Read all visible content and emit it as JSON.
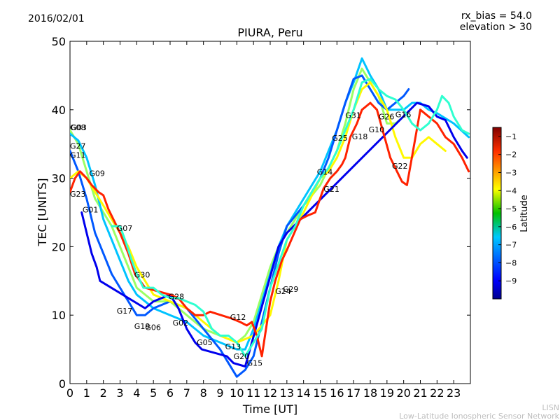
{
  "header": {
    "date": "2016/02/01",
    "bias": "rx_bias = 54.0",
    "elevation": "elevation > 30",
    "footer_line1": "LISN",
    "footer_line2": "Low-Latitude Ionospheric Sensor Network"
  },
  "chart_data": {
    "type": "scatter",
    "title": "PIURA, Peru",
    "xlabel": "Time [UT]",
    "ylabel": "TEC [UNITS]",
    "xlim": [
      0,
      24
    ],
    "ylim": [
      0,
      50
    ],
    "xticks": [
      0,
      1,
      2,
      3,
      4,
      5,
      6,
      7,
      8,
      9,
      10,
      11,
      12,
      13,
      14,
      15,
      16,
      17,
      18,
      19,
      20,
      21,
      22,
      23
    ],
    "yticks": [
      0,
      10,
      20,
      30,
      40,
      50
    ],
    "colorbar": {
      "label": "Latitude",
      "range": [
        -10,
        -0.5
      ],
      "ticks": [
        -9,
        -8,
        -7,
        -6,
        -5,
        -4,
        -3,
        -2,
        -1
      ],
      "colormap": [
        "#00008f",
        "#0000ff",
        "#0080ff",
        "#00ffff",
        "#80ff80",
        "#ffff00",
        "#ff8000",
        "#ff0000",
        "#800000"
      ]
    },
    "satellites": [
      {
        "name": "G08",
        "label_at": [
          0.0,
          37.0
        ]
      },
      {
        "name": "G03",
        "label_at": [
          0.05,
          37.0
        ]
      },
      {
        "name": "G27",
        "label_at": [
          0.0,
          34.3
        ]
      },
      {
        "name": "G11",
        "label_at": [
          0.0,
          33.0
        ]
      },
      {
        "name": "G09",
        "label_at": [
          1.15,
          30.3
        ]
      },
      {
        "name": "G23",
        "label_at": [
          0.0,
          27.3
        ]
      },
      {
        "name": "G01",
        "label_at": [
          0.75,
          25.0
        ]
      },
      {
        "name": "G07",
        "label_at": [
          2.8,
          22.3
        ]
      },
      {
        "name": "G30",
        "label_at": [
          3.85,
          15.5
        ]
      },
      {
        "name": "G17",
        "label_at": [
          2.8,
          10.2
        ]
      },
      {
        "name": "G19",
        "label_at": [
          3.85,
          8.0
        ]
      },
      {
        "name": "G06",
        "label_at": [
          4.5,
          7.8
        ]
      },
      {
        "name": "G28",
        "label_at": [
          5.9,
          12.3
        ]
      },
      {
        "name": "G02",
        "label_at": [
          6.15,
          8.5
        ]
      },
      {
        "name": "G05",
        "label_at": [
          7.6,
          5.6
        ]
      },
      {
        "name": "G12",
        "label_at": [
          9.6,
          9.3
        ]
      },
      {
        "name": "G13",
        "label_at": [
          9.3,
          5.0
        ]
      },
      {
        "name": "G20",
        "label_at": [
          9.8,
          3.6
        ]
      },
      {
        "name": "G15",
        "label_at": [
          10.6,
          2.6
        ]
      },
      {
        "name": "G24",
        "label_at": [
          12.3,
          13.1
        ]
      },
      {
        "name": "G29",
        "label_at": [
          12.75,
          13.4
        ]
      },
      {
        "name": "G14",
        "label_at": [
          14.8,
          30.5
        ]
      },
      {
        "name": "G21",
        "label_at": [
          15.2,
          28.0
        ]
      },
      {
        "name": "G25",
        "label_at": [
          15.7,
          35.5
        ]
      },
      {
        "name": "G31",
        "label_at": [
          16.5,
          38.8
        ]
      },
      {
        "name": "G18",
        "label_at": [
          16.9,
          35.7
        ]
      },
      {
        "name": "G10",
        "label_at": [
          17.9,
          36.7
        ]
      },
      {
        "name": "G26",
        "label_at": [
          18.5,
          38.6
        ]
      },
      {
        "name": "G16",
        "label_at": [
          19.5,
          38.9
        ]
      },
      {
        "name": "G22",
        "label_at": [
          19.3,
          31.4
        ]
      }
    ],
    "series": [
      {
        "lat": -5,
        "points": [
          [
            0,
            37
          ],
          [
            0.5,
            35
          ],
          [
            1,
            31
          ],
          [
            1.5,
            27
          ],
          [
            2,
            25
          ],
          [
            2.5,
            23
          ],
          [
            3,
            20
          ],
          [
            3.5,
            17
          ],
          [
            4,
            14
          ],
          [
            4.5,
            13
          ],
          [
            5,
            12
          ],
          [
            6,
            12
          ],
          [
            7,
            10
          ],
          [
            8,
            8
          ],
          [
            9,
            7
          ],
          [
            10,
            6
          ],
          [
            10.5,
            7
          ],
          [
            11,
            9
          ],
          [
            11.5,
            13
          ],
          [
            12,
            17
          ],
          [
            12.5,
            20
          ],
          [
            13,
            22
          ],
          [
            14,
            26
          ],
          [
            15,
            29
          ],
          [
            16,
            34
          ],
          [
            16.5,
            38
          ],
          [
            17,
            43
          ],
          [
            17.5,
            46
          ],
          [
            18,
            44
          ],
          [
            18.5,
            42
          ],
          [
            19,
            38
          ],
          [
            19.5,
            38
          ],
          [
            20,
            39
          ]
        ]
      },
      {
        "lat": -7,
        "points": [
          [
            0,
            36.5
          ],
          [
            0.5,
            35.5
          ],
          [
            1,
            33
          ],
          [
            1.5,
            29
          ],
          [
            2,
            24
          ],
          [
            2.5,
            21
          ],
          [
            3,
            18
          ],
          [
            3.5,
            15
          ],
          [
            4,
            13
          ],
          [
            4.5,
            12
          ],
          [
            5,
            11
          ],
          [
            6,
            10
          ],
          [
            7,
            9
          ],
          [
            8,
            7
          ],
          [
            9,
            6
          ],
          [
            10,
            5
          ],
          [
            10.5,
            5
          ],
          [
            11,
            8
          ],
          [
            11.5,
            12
          ],
          [
            12,
            16
          ],
          [
            12.5,
            20
          ],
          [
            13,
            23
          ],
          [
            14,
            27
          ],
          [
            15,
            31
          ],
          [
            16,
            37
          ],
          [
            16.5,
            41
          ],
          [
            17,
            44
          ],
          [
            17.5,
            47.5
          ],
          [
            18,
            45
          ],
          [
            18.5,
            43
          ],
          [
            19,
            40
          ],
          [
            20,
            40
          ],
          [
            20.5,
            41
          ],
          [
            21,
            41
          ],
          [
            21.5,
            40
          ],
          [
            22,
            39.5
          ],
          [
            23,
            38
          ],
          [
            23.9,
            36
          ]
        ]
      },
      {
        "lat": -8,
        "points": [
          [
            0,
            34
          ],
          [
            0.5,
            31
          ],
          [
            1,
            27
          ],
          [
            1.5,
            22
          ],
          [
            2,
            19
          ],
          [
            2.5,
            16
          ],
          [
            3,
            14
          ],
          [
            3.5,
            12
          ],
          [
            4,
            10
          ],
          [
            4.5,
            10
          ],
          [
            5,
            11
          ],
          [
            6,
            12
          ],
          [
            7,
            11
          ],
          [
            8,
            8
          ],
          [
            9,
            5
          ],
          [
            9.5,
            3
          ],
          [
            10,
            1
          ],
          [
            10.5,
            2
          ],
          [
            11,
            4
          ],
          [
            11.5,
            9
          ],
          [
            12,
            14
          ],
          [
            12.5,
            19
          ],
          [
            13,
            23
          ],
          [
            14,
            26
          ],
          [
            15,
            30
          ],
          [
            15.5,
            33
          ],
          [
            16,
            37
          ],
          [
            16.5,
            41
          ],
          [
            17,
            44.5
          ],
          [
            17.5,
            45
          ],
          [
            18,
            43
          ],
          [
            18.5,
            41
          ],
          [
            19,
            40
          ],
          [
            19.5,
            41
          ],
          [
            20,
            42
          ],
          [
            20.3,
            43
          ]
        ]
      },
      {
        "lat": -4,
        "points": [
          [
            0,
            30
          ],
          [
            0.5,
            31
          ],
          [
            1,
            30
          ],
          [
            1.5,
            28
          ],
          [
            2,
            26
          ],
          [
            2.5,
            24
          ],
          [
            3,
            22
          ],
          [
            3.5,
            20
          ],
          [
            4,
            17
          ],
          [
            4.5,
            15
          ],
          [
            5,
            13
          ],
          [
            6,
            12
          ],
          [
            7,
            11
          ],
          [
            8,
            9
          ],
          [
            9,
            7
          ],
          [
            10,
            6
          ],
          [
            11,
            7
          ],
          [
            12,
            10
          ],
          [
            12.5,
            15
          ],
          [
            13,
            21
          ],
          [
            14,
            25
          ],
          [
            15,
            30
          ],
          [
            15.5,
            31
          ],
          [
            16,
            33
          ],
          [
            16.5,
            36
          ],
          [
            17,
            40
          ],
          [
            17.5,
            43
          ],
          [
            18,
            44
          ],
          [
            18.5,
            42
          ],
          [
            19,
            40
          ],
          [
            19.5,
            36
          ],
          [
            20,
            33
          ],
          [
            20.5,
            33
          ],
          [
            21,
            35
          ],
          [
            21.5,
            36
          ],
          [
            22,
            35
          ],
          [
            22.5,
            34
          ]
        ]
      },
      {
        "lat": -9,
        "points": [
          [
            0.7,
            25
          ],
          [
            1,
            22
          ],
          [
            1.3,
            19
          ],
          [
            1.6,
            17
          ],
          [
            1.8,
            15
          ],
          [
            4.5,
            11
          ],
          [
            5,
            12
          ],
          [
            5.5,
            12.5
          ],
          [
            6,
            13
          ],
          [
            6.5,
            11
          ],
          [
            7,
            8
          ],
          [
            7.5,
            6
          ],
          [
            7.9,
            5
          ],
          [
            9.4,
            4
          ],
          [
            9.8,
            3
          ],
          [
            10.5,
            2.5
          ],
          [
            12.5,
            20
          ],
          [
            13,
            22
          ],
          [
            20.8,
            41
          ],
          [
            21.5,
            40.5
          ],
          [
            22,
            39
          ],
          [
            22.5,
            38.5
          ],
          [
            23,
            36
          ],
          [
            23.5,
            34
          ],
          [
            23.8,
            33
          ]
        ]
      },
      {
        "lat": -2,
        "points": [
          [
            0,
            28
          ],
          [
            0.3,
            30
          ],
          [
            0.6,
            31
          ],
          [
            1,
            30
          ],
          [
            1.3,
            29
          ],
          [
            1.7,
            28
          ],
          [
            2,
            27.5
          ],
          [
            2.3,
            25.5
          ],
          [
            3,
            22
          ],
          [
            3.5,
            19
          ],
          [
            3.9,
            16
          ],
          [
            4.2,
            15
          ],
          [
            4.5,
            14
          ],
          [
            6,
            13
          ],
          [
            6.5,
            12.5
          ],
          [
            7,
            11
          ],
          [
            7.5,
            10
          ],
          [
            8,
            10
          ],
          [
            8.4,
            10.5
          ],
          [
            9.7,
            9.5
          ],
          [
            10.2,
            9
          ],
          [
            10.6,
            8.5
          ],
          [
            10.9,
            9
          ],
          [
            11.2,
            7
          ],
          [
            11.5,
            4
          ],
          [
            12,
            12
          ],
          [
            12.3,
            15
          ],
          [
            12.7,
            18
          ],
          [
            13,
            19.5
          ],
          [
            13.8,
            24
          ],
          [
            14.2,
            24.5
          ],
          [
            14.7,
            25
          ],
          [
            15.2,
            28.5
          ],
          [
            15.6,
            30
          ],
          [
            16,
            31
          ],
          [
            16.3,
            32
          ],
          [
            16.5,
            33
          ],
          [
            16.8,
            36
          ],
          [
            17.2,
            38
          ],
          [
            17.5,
            40
          ],
          [
            18,
            41
          ],
          [
            18.4,
            40
          ],
          [
            19.2,
            33
          ],
          [
            19.6,
            31
          ],
          [
            19.9,
            29.5
          ],
          [
            20.2,
            29
          ],
          [
            21,
            40
          ],
          [
            22,
            38
          ],
          [
            22.5,
            36
          ],
          [
            23,
            35
          ],
          [
            23.5,
            33
          ],
          [
            23.9,
            31
          ]
        ]
      },
      {
        "lat": -6,
        "points": [
          [
            2.5,
            23
          ],
          [
            3,
            23
          ],
          [
            3.3,
            21
          ],
          [
            3.7,
            18
          ],
          [
            4,
            16
          ],
          [
            4.4,
            14
          ],
          [
            5,
            14
          ],
          [
            5.5,
            13
          ],
          [
            6,
            12.5
          ],
          [
            6.5,
            12.5
          ],
          [
            7,
            12
          ],
          [
            7.5,
            11.5
          ],
          [
            8,
            10.5
          ],
          [
            8.5,
            8
          ],
          [
            9,
            7
          ],
          [
            9.5,
            7
          ],
          [
            10,
            6
          ],
          [
            10.5,
            4
          ],
          [
            11,
            6
          ],
          [
            11.5,
            8
          ],
          [
            12,
            14
          ],
          [
            13,
            21
          ],
          [
            13.5,
            23
          ],
          [
            14,
            26
          ],
          [
            14.5,
            28
          ],
          [
            15,
            30
          ],
          [
            15.5,
            31.5
          ],
          [
            16,
            34
          ],
          [
            16.5,
            37
          ],
          [
            17,
            40
          ],
          [
            17.5,
            44
          ],
          [
            18,
            44.5
          ],
          [
            18.5,
            43
          ],
          [
            19,
            42
          ],
          [
            19.5,
            41.5
          ],
          [
            20,
            40
          ],
          [
            20.5,
            38
          ],
          [
            21,
            37
          ],
          [
            21.5,
            38
          ],
          [
            22,
            40
          ],
          [
            22.3,
            42
          ],
          [
            22.7,
            41
          ],
          [
            23,
            39
          ],
          [
            23.5,
            37
          ],
          [
            23.9,
            36.5
          ]
        ]
      }
    ]
  }
}
